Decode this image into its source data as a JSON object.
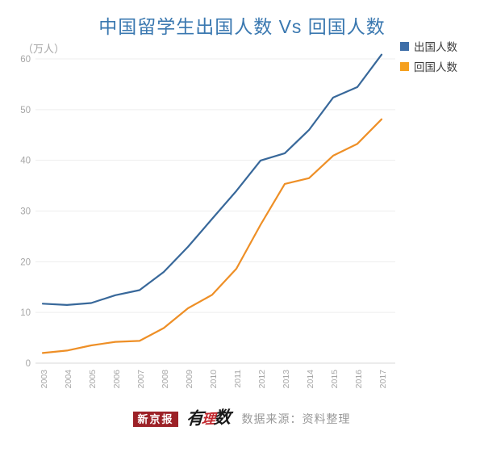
{
  "title": "中国留学生出国人数 Vs 回国人数",
  "unit_label": "（万人）",
  "legend": [
    {
      "label": "出国人数",
      "color": "#3e6ea8"
    },
    {
      "label": "回国人数",
      "color": "#f5a01f"
    }
  ],
  "footer": {
    "brand_box": "新京报",
    "logo_char1": "有",
    "logo_char2": "理",
    "logo_char3": "数",
    "source": "数据来源：资料整理"
  },
  "colors": {
    "title": "#3a78b0",
    "grid": "#ededed",
    "axis": "#d9d9d9",
    "ticks": "#a6a6a6",
    "legendText": "#3d3d3d",
    "brandRed": "#9c2127",
    "logoRed": "#c1272d",
    "muted": "#999999"
  },
  "chart_data": {
    "type": "line",
    "x": [
      2003,
      2004,
      2005,
      2006,
      2007,
      2008,
      2009,
      2010,
      2011,
      2012,
      2013,
      2014,
      2015,
      2016,
      2017
    ],
    "series": [
      {
        "name": "出国人数",
        "color": "#38689a",
        "values": [
          11.73,
          11.47,
          11.85,
          13.4,
          14.4,
          17.98,
          22.93,
          28.47,
          33.97,
          39.96,
          41.39,
          45.98,
          52.37,
          54.45,
          60.84
        ]
      },
      {
        "name": "回国人数",
        "color": "#ee8f26",
        "values": [
          2.01,
          2.48,
          3.5,
          4.2,
          4.4,
          6.93,
          10.83,
          13.48,
          18.62,
          27.29,
          35.35,
          36.48,
          40.91,
          43.25,
          48.09
        ]
      }
    ],
    "ylim": [
      0,
      60
    ],
    "yticks": [
      0,
      10,
      20,
      30,
      40,
      50,
      60
    ],
    "ylabel": "（万人）",
    "xlabel": "",
    "grid": true,
    "legend_position": "top-right"
  }
}
